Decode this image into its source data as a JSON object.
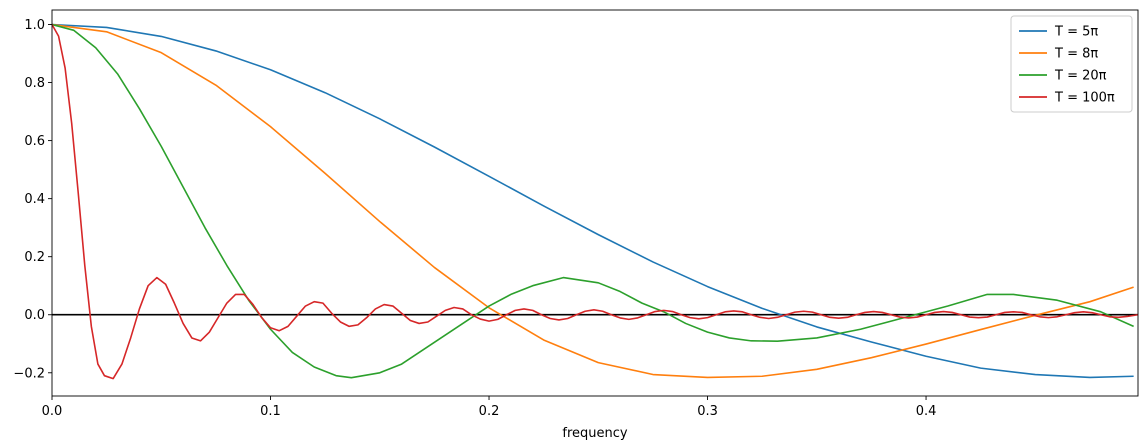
{
  "chart_data": {
    "type": "line",
    "title": "",
    "xlabel": "frequency",
    "ylabel": "",
    "xlim": [
      0,
      0.497
    ],
    "ylim": [
      -0.28,
      1.05
    ],
    "xticks": [
      0.0,
      0.1,
      0.2,
      0.3,
      0.4
    ],
    "xtick_labels": [
      "0.0",
      "0.1",
      "0.2",
      "0.3",
      "0.4"
    ],
    "yticks": [
      -0.2,
      0.0,
      0.2,
      0.4,
      0.6,
      0.8,
      1.0
    ],
    "ytick_labels": [
      "−0.2",
      "0.0",
      "0.2",
      "0.4",
      "0.6",
      "0.8",
      "1.0"
    ],
    "grid": false,
    "legend_position": "top-right",
    "reference_line": {
      "y": 0.0,
      "color": "#000000"
    },
    "series": [
      {
        "name": "T = 5π",
        "color": "#1f77b4",
        "x": [
          0.0,
          0.025,
          0.05,
          0.075,
          0.1,
          0.125,
          0.15,
          0.175,
          0.2,
          0.225,
          0.25,
          0.275,
          0.3,
          0.325,
          0.35,
          0.375,
          0.4,
          0.425,
          0.45,
          0.475,
          0.495
        ],
        "y": [
          1.0,
          0.99,
          0.959,
          0.909,
          0.844,
          0.765,
          0.675,
          0.578,
          0.477,
          0.375,
          0.276,
          0.182,
          0.097,
          0.022,
          -0.042,
          -0.094,
          -0.143,
          -0.184,
          -0.206,
          -0.216,
          -0.212
        ]
      },
      {
        "name": "T = 8π",
        "color": "#ff7f0e",
        "x": [
          0.0,
          0.025,
          0.05,
          0.075,
          0.1,
          0.125,
          0.15,
          0.175,
          0.2,
          0.225,
          0.25,
          0.275,
          0.3,
          0.325,
          0.35,
          0.375,
          0.4,
          0.425,
          0.45,
          0.475,
          0.495
        ],
        "y": [
          1.0,
          0.975,
          0.903,
          0.791,
          0.648,
          0.487,
          0.321,
          0.163,
          0.024,
          -0.087,
          -0.165,
          -0.206,
          -0.216,
          -0.212,
          -0.188,
          -0.148,
          -0.101,
          -0.051,
          -0.002,
          0.045,
          0.095
        ]
      },
      {
        "name": "T = 20π",
        "color": "#2ca02c",
        "x": [
          0.0,
          0.01,
          0.02,
          0.03,
          0.04,
          0.05,
          0.06,
          0.07,
          0.08,
          0.09,
          0.1,
          0.11,
          0.12,
          0.13,
          0.137,
          0.15,
          0.16,
          0.17,
          0.18,
          0.19,
          0.2,
          0.21,
          0.22,
          0.234,
          0.25,
          0.26,
          0.27,
          0.28,
          0.29,
          0.3,
          0.31,
          0.32,
          0.332,
          0.35,
          0.37,
          0.39,
          0.41,
          0.428,
          0.44,
          0.46,
          0.48,
          0.495
        ],
        "y": [
          1.0,
          0.98,
          0.92,
          0.83,
          0.71,
          0.58,
          0.44,
          0.3,
          0.17,
          0.05,
          -0.05,
          -0.13,
          -0.18,
          -0.21,
          -0.217,
          -0.2,
          -0.17,
          -0.12,
          -0.07,
          -0.02,
          0.03,
          0.07,
          0.1,
          0.128,
          0.11,
          0.08,
          0.04,
          0.01,
          -0.03,
          -0.06,
          -0.08,
          -0.09,
          -0.091,
          -0.08,
          -0.05,
          -0.01,
          0.03,
          0.07,
          0.07,
          0.05,
          0.01,
          -0.04
        ]
      },
      {
        "name": "T = 100π",
        "color": "#d62728",
        "x": [
          0.0,
          0.003,
          0.006,
          0.009,
          0.012,
          0.015,
          0.018,
          0.021,
          0.024,
          0.028,
          0.032,
          0.036,
          0.04,
          0.044,
          0.048,
          0.052,
          0.056,
          0.06,
          0.064,
          0.068,
          0.072,
          0.076,
          0.08,
          0.084,
          0.088,
          0.092,
          0.096,
          0.1,
          0.104,
          0.108,
          0.112,
          0.116,
          0.12,
          0.124,
          0.128,
          0.132,
          0.136,
          0.14,
          0.144,
          0.148,
          0.152,
          0.156,
          0.16,
          0.164,
          0.168,
          0.172,
          0.176,
          0.18,
          0.184,
          0.188,
          0.192,
          0.196,
          0.2,
          0.204,
          0.208,
          0.212,
          0.216,
          0.22,
          0.224,
          0.228,
          0.232,
          0.236,
          0.24,
          0.244,
          0.248,
          0.252,
          0.256,
          0.26,
          0.264,
          0.268,
          0.272,
          0.276,
          0.28,
          0.284,
          0.288,
          0.292,
          0.296,
          0.3,
          0.304,
          0.308,
          0.312,
          0.316,
          0.32,
          0.324,
          0.328,
          0.332,
          0.336,
          0.34,
          0.344,
          0.348,
          0.352,
          0.356,
          0.36,
          0.364,
          0.368,
          0.372,
          0.376,
          0.38,
          0.384,
          0.388,
          0.392,
          0.396,
          0.4,
          0.404,
          0.408,
          0.412,
          0.416,
          0.42,
          0.424,
          0.428,
          0.432,
          0.436,
          0.44,
          0.444,
          0.448,
          0.452,
          0.456,
          0.46,
          0.464,
          0.468,
          0.472,
          0.476,
          0.48,
          0.484,
          0.488,
          0.492,
          0.497
        ],
        "y": [
          1.0,
          0.96,
          0.85,
          0.66,
          0.42,
          0.17,
          -0.04,
          -0.17,
          -0.21,
          -0.22,
          -0.17,
          -0.08,
          0.02,
          0.1,
          0.128,
          0.105,
          0.04,
          -0.03,
          -0.08,
          -0.09,
          -0.06,
          -0.01,
          0.04,
          0.07,
          0.07,
          0.035,
          -0.01,
          -0.045,
          -0.055,
          -0.04,
          -0.005,
          0.03,
          0.045,
          0.04,
          0.005,
          -0.025,
          -0.04,
          -0.035,
          -0.01,
          0.02,
          0.035,
          0.03,
          0.005,
          -0.02,
          -0.03,
          -0.025,
          -0.005,
          0.015,
          0.025,
          0.02,
          0.0,
          -0.015,
          -0.022,
          -0.016,
          0.0,
          0.015,
          0.02,
          0.015,
          0.0,
          -0.013,
          -0.018,
          -0.013,
          0.0,
          0.012,
          0.017,
          0.012,
          0.0,
          -0.011,
          -0.016,
          -0.011,
          0.0,
          0.011,
          0.015,
          0.011,
          0.0,
          -0.01,
          -0.014,
          -0.01,
          0.0,
          0.01,
          0.013,
          0.01,
          0.0,
          -0.009,
          -0.013,
          -0.009,
          0.0,
          0.009,
          0.012,
          0.009,
          0.0,
          -0.009,
          -0.012,
          -0.009,
          0.0,
          0.008,
          0.011,
          0.008,
          0.0,
          -0.008,
          -0.011,
          -0.008,
          0.0,
          0.008,
          0.011,
          0.008,
          0.0,
          -0.008,
          -0.01,
          -0.008,
          0.0,
          0.008,
          0.01,
          0.008,
          0.0,
          -0.007,
          -0.01,
          -0.007,
          0.0,
          0.007,
          0.01,
          0.007,
          0.0,
          -0.007,
          -0.009,
          -0.006,
          0.0
        ]
      }
    ]
  }
}
